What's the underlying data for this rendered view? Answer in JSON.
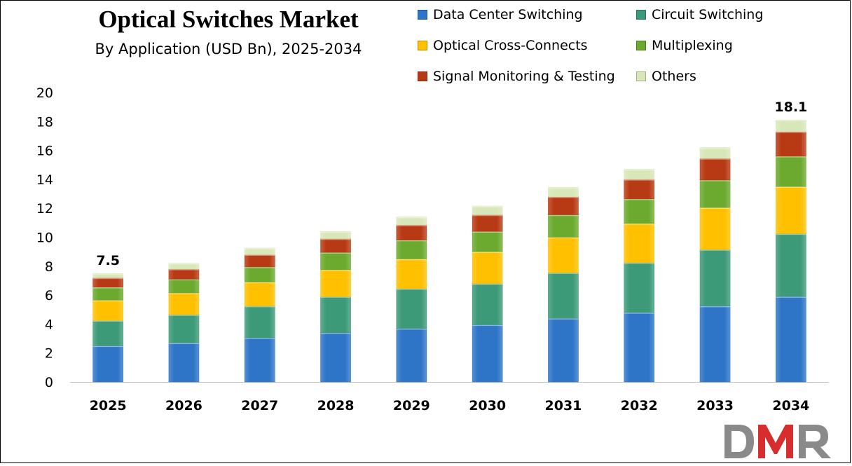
{
  "chart_data": {
    "type": "bar",
    "stacked": true,
    "title": "Optical Switches Market",
    "subtitle": "By Application (USD Bn), 2025-2034",
    "xlabel": "",
    "ylabel": "",
    "categories": [
      "2025",
      "2026",
      "2027",
      "2028",
      "2029",
      "2030",
      "2031",
      "2032",
      "2033",
      "2034"
    ],
    "ylim": [
      0,
      20
    ],
    "yticks": [
      0,
      2,
      4,
      6,
      8,
      10,
      12,
      14,
      16,
      18,
      20
    ],
    "grid": false,
    "legend_position": "top-right",
    "series": [
      {
        "name": "Data Center Switching",
        "color": "#2E75C8",
        "values": [
          2.5,
          2.7,
          3.05,
          3.4,
          3.7,
          3.95,
          4.4,
          4.8,
          5.25,
          5.9
        ]
      },
      {
        "name": "Circuit Switching",
        "color": "#3C9A78",
        "values": [
          1.75,
          1.95,
          2.2,
          2.5,
          2.75,
          2.85,
          3.15,
          3.45,
          3.9,
          4.35
        ]
      },
      {
        "name": "Optical Cross-Connects",
        "color": "#FFC000",
        "values": [
          1.4,
          1.5,
          1.65,
          1.85,
          2.05,
          2.2,
          2.45,
          2.7,
          2.9,
          3.25
        ]
      },
      {
        "name": "Multiplexing",
        "color": "#6BAA2E",
        "values": [
          0.9,
          0.95,
          1.05,
          1.2,
          1.3,
          1.4,
          1.55,
          1.7,
          1.9,
          2.1
        ]
      },
      {
        "name": "Signal Monitoring & Testing",
        "color": "#B83A14",
        "values": [
          0.65,
          0.7,
          0.85,
          0.95,
          1.05,
          1.15,
          1.25,
          1.35,
          1.5,
          1.7
        ]
      },
      {
        "name": "Others",
        "color": "#D8E7B8",
        "values": [
          0.3,
          0.4,
          0.45,
          0.5,
          0.55,
          0.6,
          0.65,
          0.7,
          0.75,
          0.8
        ]
      }
    ],
    "annotations": [
      {
        "category": "2025",
        "text": "7.5"
      },
      {
        "category": "2034",
        "text": "18.1"
      }
    ]
  },
  "logo": {
    "text": "DMR"
  }
}
